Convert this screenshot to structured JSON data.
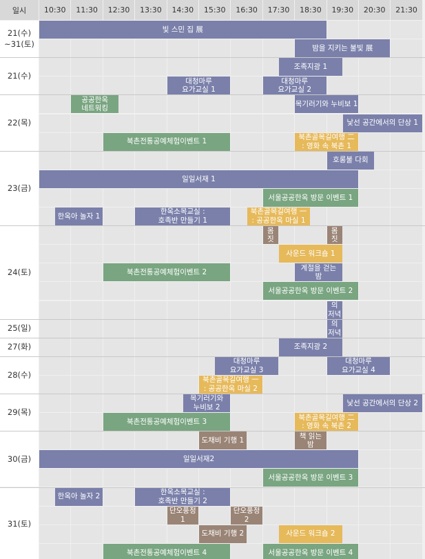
{
  "colors": {
    "blue": "#7a80aa",
    "green": "#79a581",
    "orange": "#e6b95a",
    "brown": "#9a8476"
  },
  "header": {
    "corner": "일시",
    "times": [
      "10:30",
      "11:30",
      "12:30",
      "13:30",
      "14:30",
      "15:30",
      "16:30",
      "17:30",
      "18:30",
      "19:30",
      "20:30",
      "21:30"
    ]
  },
  "days": [
    {
      "label": "21(수)\n~31(토)",
      "start": 0,
      "end": 2
    },
    {
      "label": "21(수)",
      "start": 2,
      "end": 4
    },
    {
      "label": "22(목)",
      "start": 4,
      "end": 7
    },
    {
      "label": "23(금)",
      "start": 7,
      "end": 11
    },
    {
      "label": "24(토)",
      "start": 11,
      "end": 16
    },
    {
      "label": "25(일)",
      "start": 16,
      "end": 17
    },
    {
      "label": "27(화)",
      "start": 17,
      "end": 18
    },
    {
      "label": "28(수)",
      "start": 18,
      "end": 20
    },
    {
      "label": "29(목)",
      "start": 20,
      "end": 22
    },
    {
      "label": "30(금)",
      "start": 22,
      "end": 25
    },
    {
      "label": "31(토)",
      "start": 25,
      "end": 29
    }
  ],
  "events": [
    {
      "label": "빛 스민 집 展",
      "color": "blue",
      "row": 0,
      "start": 0,
      "end": 18
    },
    {
      "label": "밤을 지키는 불빛 展",
      "color": "blue",
      "row": 1,
      "start": 16,
      "end": 22
    },
    {
      "label": "조족지광 1",
      "color": "blue",
      "row": 2,
      "start": 15,
      "end": 19
    },
    {
      "label": "대청마루\n요가교실 1",
      "color": "blue",
      "row": 3,
      "start": 8,
      "end": 12
    },
    {
      "label": "대청마루\n요가교실 2",
      "color": "blue",
      "row": 3,
      "start": 14,
      "end": 18
    },
    {
      "label": "공공한옥\n네트워킹",
      "color": "green",
      "row": 4,
      "start": 2,
      "end": 5
    },
    {
      "label": "목기러기와 누비보 1",
      "color": "blue",
      "row": 4,
      "start": 16,
      "end": 20
    },
    {
      "label": "낯선 공간에서의 단상 1",
      "color": "blue",
      "row": 5,
      "start": 19,
      "end": 24
    },
    {
      "label": "북촌전통공예체험이벤트 1",
      "color": "green",
      "row": 6,
      "start": 4,
      "end": 12
    },
    {
      "label": "북촌골목길여행 二\n: 영화 속 북촌 1",
      "color": "orange",
      "row": 6,
      "start": 16,
      "end": 20
    },
    {
      "label": "호롱불 다회",
      "color": "blue",
      "row": 7,
      "start": 18,
      "end": 21
    },
    {
      "label": "일일서재 1",
      "color": "blue",
      "row": 8,
      "start": 0,
      "end": 20
    },
    {
      "label": "서울공공한옥 방문 이벤트 1",
      "color": "green",
      "row": 9,
      "start": 14,
      "end": 20
    },
    {
      "label": "한옥아 놀자 1",
      "color": "blue",
      "row": 10,
      "start": 1,
      "end": 4
    },
    {
      "label": "한옥소목교실 :\n호족반 만들기 1",
      "color": "blue",
      "row": 10,
      "start": 6,
      "end": 12
    },
    {
      "label": "북촌골목길여행 一\n: 공공한옥 마실 1",
      "color": "orange",
      "row": 10,
      "start": 13,
      "end": 17
    },
    {
      "label": "몸\n짓",
      "color": "brown",
      "row": 11,
      "start": 14,
      "end": 15
    },
    {
      "label": "몸\n짓",
      "color": "brown",
      "row": 11,
      "start": 18,
      "end": 19
    },
    {
      "label": "사운드 워크숍 1",
      "color": "orange",
      "row": 12,
      "start": 15,
      "end": 19
    },
    {
      "label": "북촌전통공예체험이벤트 2",
      "color": "green",
      "row": 13,
      "start": 4,
      "end": 12
    },
    {
      "label": "계절을 걷는\n밤",
      "color": "blue",
      "row": 13,
      "start": 16,
      "end": 19
    },
    {
      "label": "서울공공한옥 방문 이벤트 2",
      "color": "green",
      "row": 14,
      "start": 14,
      "end": 20
    },
    {
      "label": "한옥의\n저녁 1",
      "color": "blue",
      "row": 15,
      "start": 18,
      "end": 19
    },
    {
      "label": "한옥의\n저녁 2",
      "color": "blue",
      "row": 16,
      "start": 18,
      "end": 19
    },
    {
      "label": "조족지광 2",
      "color": "blue",
      "row": 17,
      "start": 15,
      "end": 19
    },
    {
      "label": "대청마루\n요가교실 3",
      "color": "blue",
      "row": 18,
      "start": 11,
      "end": 15
    },
    {
      "label": "대청마루\n요가교실 4",
      "color": "blue",
      "row": 18,
      "start": 18,
      "end": 22
    },
    {
      "label": "북촌골목길여행 一\n: 공공한옥 마실 2",
      "color": "orange",
      "row": 19,
      "start": 10,
      "end": 14
    },
    {
      "label": "목기러기와\n누비보 2",
      "color": "blue",
      "row": 20,
      "start": 9,
      "end": 12
    },
    {
      "label": "낯선 공간에서의 단상 2",
      "color": "blue",
      "row": 20,
      "start": 19,
      "end": 24
    },
    {
      "label": "북촌전통공예체험이벤트 3",
      "color": "green",
      "row": 21,
      "start": 4,
      "end": 12
    },
    {
      "label": "북촌골목길여행 二\n: 영화 속 북촌 2",
      "color": "orange",
      "row": 21,
      "start": 16,
      "end": 20
    },
    {
      "label": "도채비 기행 1",
      "color": "brown",
      "row": 22,
      "start": 10,
      "end": 13
    },
    {
      "label": "책 읽는\n밤",
      "color": "brown",
      "row": 22,
      "start": 16,
      "end": 18
    },
    {
      "label": "일일서재2",
      "color": "blue",
      "row": 23,
      "start": 0,
      "end": 20
    },
    {
      "label": "서울공공한옥 방문 이벤트 3",
      "color": "green",
      "row": 24,
      "start": 14,
      "end": 20
    },
    {
      "label": "한옥아 놀자 2",
      "color": "blue",
      "row": 25,
      "start": 1,
      "end": 4
    },
    {
      "label": "한옥소목교실 :\n호족반 만들기 2",
      "color": "blue",
      "row": 25,
      "start": 6,
      "end": 12
    },
    {
      "label": "단오풍정\n1",
      "color": "brown",
      "row": 26,
      "start": 8,
      "end": 10
    },
    {
      "label": "단오풍정\n2",
      "color": "brown",
      "row": 26,
      "start": 12,
      "end": 14
    },
    {
      "label": "도채비 기행 2",
      "color": "brown",
      "row": 27,
      "start": 10,
      "end": 13
    },
    {
      "label": "사운드 워크숍 2",
      "color": "orange",
      "row": 27,
      "start": 15,
      "end": 19
    },
    {
      "label": "북촌전통공예체험이벤트 4",
      "color": "green",
      "row": 28,
      "start": 4,
      "end": 12
    },
    {
      "label": "서울공공한옥 방문 이벤트 4",
      "color": "green",
      "row": 28,
      "start": 14,
      "end": 20
    }
  ]
}
